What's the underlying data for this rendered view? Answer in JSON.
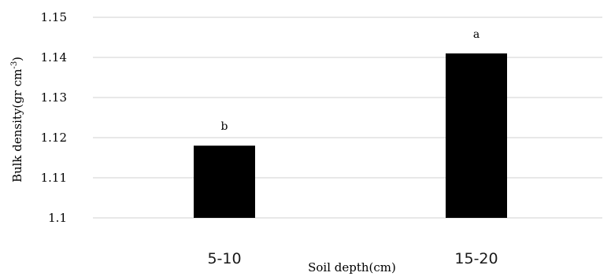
{
  "chart_data": {
    "type": "bar",
    "title": "",
    "xlabel": "Soil depth(cm)",
    "ylabel_main": "Bulk density(gr cm",
    "ylabel_sup": "-3",
    "ylabel_close": ")",
    "categories": [
      "5-10",
      "15-20"
    ],
    "values": [
      1.118,
      1.141
    ],
    "data_labels": [
      "b",
      "a"
    ],
    "ylim": [
      1.1,
      1.15
    ],
    "yticks": [
      1.1,
      1.11,
      1.12,
      1.13,
      1.14,
      1.15
    ],
    "ytick_labels": [
      "1.1",
      "1.11",
      "1.12",
      "1.13",
      "1.14",
      "1.15"
    ],
    "grid": true,
    "colors": {
      "bar": "#000000",
      "grid": "#d9d9d9"
    }
  }
}
